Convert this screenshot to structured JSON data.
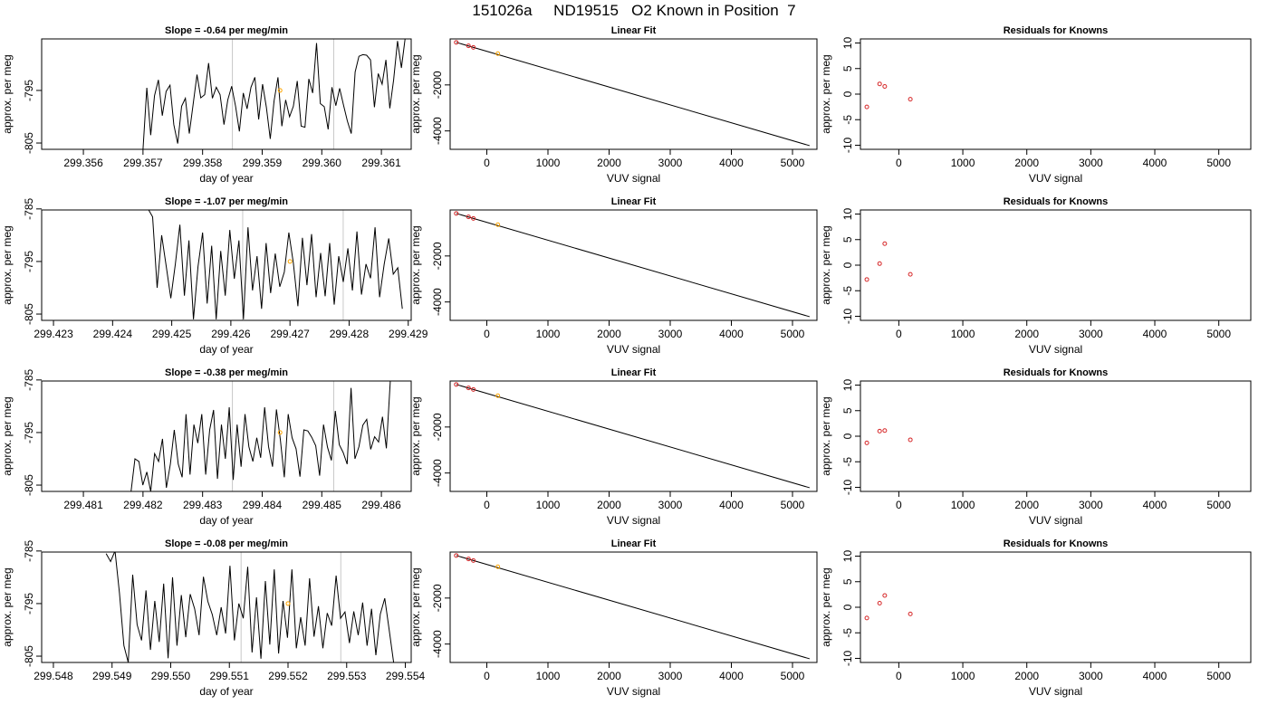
{
  "page": {
    "title": "151026a     ND19515   O2 Known in Position  7"
  },
  "colors": {
    "trace": "#000000",
    "highlight": "#ffa500",
    "points": "#d62728",
    "reference_lines": "#c8c8c8"
  },
  "chart_data": [
    {
      "type": "line",
      "title": "Slope =  -0.64  per meg/min",
      "xlabel": "day of year",
      "ylabel": "approx. per meg",
      "xlim": [
        299.3553,
        299.3615
      ],
      "ylim": [
        -806.2,
        -785.2
      ],
      "xticks": [
        299.356,
        299.357,
        299.358,
        299.359,
        299.36,
        299.361
      ],
      "xtick_labels": [
        "299.356",
        "299.357",
        "299.358",
        "299.359",
        "299.360",
        "299.361"
      ],
      "yticks": [
        -805,
        -795
      ],
      "vlines": [
        299.3585,
        299.3602
      ],
      "series": [
        {
          "x_start": 299.357,
          "x_end": 299.3614,
          "y": [
            -806.2,
            -794.5,
            -803.5,
            -796,
            -793,
            -799.8,
            -795.2,
            -794,
            -801.5,
            -805.1,
            -798,
            -796.5,
            -803.2,
            -797.7,
            -792,
            -796.4,
            -795.8,
            -789.8,
            -796.5,
            -794.4,
            -795.8,
            -801.5,
            -796.8,
            -794.2,
            -798,
            -802.8,
            -795.5,
            -798.5,
            -794.4,
            -792.5,
            -800.5,
            -793.8,
            -798.2,
            -804.2,
            -797,
            -792.5,
            -801.8,
            -796.8,
            -800,
            -798,
            -793.2,
            -801.8,
            -802,
            -792.8,
            -795.5,
            -786,
            -797.5,
            -798.1,
            -802.4,
            -794.4,
            -797.9,
            -794.6,
            -797.8,
            -800.8,
            -803.2,
            -791.5,
            -788.5,
            -788.2,
            -788.3,
            -789.2,
            -798.2,
            -791.8,
            -793.8,
            -789.2,
            -798.4,
            -793,
            -785.6,
            -790.7,
            -785
          ]
        }
      ],
      "highlight_points": [
        {
          "x": 299.3593,
          "y": -795
        }
      ]
    },
    {
      "type": "line",
      "title": "Linear Fit",
      "xlabel": "VUV signal",
      "ylabel": "approx. per meg",
      "xlim": [
        -600,
        5400
      ],
      "ylim": [
        -4800,
        0
      ],
      "xticks": [
        0,
        1000,
        2000,
        3000,
        4000,
        5000
      ],
      "xtick_labels": [
        "0",
        "1000",
        "2000",
        "3000",
        "4000",
        "5000"
      ],
      "yticks": [
        -2000,
        -4000
      ],
      "ytick_labels": [
        "-2000",
        "-4000"
      ],
      "fit_line": {
        "x": [
          -500,
          5280
        ],
        "y": [
          -150,
          -4640
        ]
      },
      "known_points": [
        {
          "x": -500,
          "y": -150
        },
        {
          "x": -300,
          "y": -300
        },
        {
          "x": -220,
          "y": -370
        }
      ],
      "highlight_points": [
        {
          "x": 180,
          "y": -640
        }
      ]
    },
    {
      "type": "scatter",
      "title": "Residuals for Knowns",
      "xlabel": "VUV signal",
      "ylabel": "approx. per meg",
      "xlim": [
        -600,
        5500
      ],
      "ylim": [
        -10.8,
        10.8
      ],
      "xticks": [
        0,
        1000,
        2000,
        3000,
        4000,
        5000
      ],
      "xtick_labels": [
        "0",
        "1000",
        "2000",
        "3000",
        "4000",
        "5000"
      ],
      "yticks": [
        10,
        5,
        0,
        -5,
        -10
      ],
      "points": [
        {
          "x": -500,
          "y": -2.5
        },
        {
          "x": -300,
          "y": 2
        },
        {
          "x": -220,
          "y": 1.5
        },
        {
          "x": 180,
          "y": -1
        }
      ]
    },
    {
      "type": "line",
      "title": "Slope =  -1.07  per meg/min",
      "xlabel": "day of year",
      "ylabel": "approx. per meg",
      "xlim": [
        299.4228,
        299.42905
      ],
      "ylim": [
        -806.2,
        -785.2
      ],
      "xticks": [
        299.423,
        299.424,
        299.425,
        299.426,
        299.427,
        299.428,
        299.429
      ],
      "xtick_labels": [
        "299.423",
        "299.424",
        "299.425",
        "299.426",
        "299.427",
        "299.428",
        "299.429"
      ],
      "yticks": [
        -785,
        -795,
        -805
      ],
      "vlines": [
        299.4262,
        299.4279
      ],
      "series": [
        {
          "x_start": 299.4246,
          "x_end": 299.4289,
          "y": [
            -785,
            -786.5,
            -800,
            -790,
            -796,
            -802,
            -795.5,
            -788,
            -801.5,
            -791,
            -806,
            -796,
            -789.5,
            -803,
            -792,
            -806,
            -793,
            -801.5,
            -789,
            -798.3,
            -791,
            -806,
            -788.5,
            -800.5,
            -794,
            -804,
            -791.5,
            -801,
            -793.5,
            -799.8,
            -797,
            -789.5,
            -795.3,
            -803.5,
            -790.5,
            -799.5,
            -789.8,
            -801.8,
            -793.4,
            -801.6,
            -791.5,
            -803.2,
            -794,
            -798.9,
            -792.5,
            -800.5,
            -789.3,
            -801.3,
            -795.5,
            -798.2,
            -788.5,
            -801.8,
            -795.5,
            -790.6,
            -797.4,
            -796.2,
            -804
          ]
        }
      ],
      "highlight_points": [
        {
          "x": 299.427,
          "y": -795
        }
      ]
    },
    {
      "type": "line",
      "title": "Linear Fit",
      "xlabel": "VUV signal",
      "ylabel": "approx. per meg",
      "xlim": [
        -600,
        5400
      ],
      "ylim": [
        -4800,
        0
      ],
      "xticks": [
        0,
        1000,
        2000,
        3000,
        4000,
        5000
      ],
      "xtick_labels": [
        "0",
        "1000",
        "2000",
        "3000",
        "4000",
        "5000"
      ],
      "yticks": [
        -2000,
        -4000
      ],
      "ytick_labels": [
        "-2000",
        "-4000"
      ],
      "fit_line": {
        "x": [
          -500,
          5280
        ],
        "y": [
          -150,
          -4640
        ]
      },
      "known_points": [
        {
          "x": -500,
          "y": -150
        },
        {
          "x": -300,
          "y": -300
        },
        {
          "x": -220,
          "y": -370
        }
      ],
      "highlight_points": [
        {
          "x": 180,
          "y": -640
        }
      ]
    },
    {
      "type": "scatter",
      "title": "Residuals for Knowns",
      "xlabel": "VUV signal",
      "ylabel": "approx. per meg",
      "xlim": [
        -600,
        5500
      ],
      "ylim": [
        -10.8,
        10.8
      ],
      "xticks": [
        0,
        1000,
        2000,
        3000,
        4000,
        5000
      ],
      "xtick_labels": [
        "0",
        "1000",
        "2000",
        "3000",
        "4000",
        "5000"
      ],
      "yticks": [
        10,
        5,
        0,
        -5,
        -10
      ],
      "points": [
        {
          "x": -500,
          "y": -2.8
        },
        {
          "x": -300,
          "y": 0.3
        },
        {
          "x": -220,
          "y": 4.2
        },
        {
          "x": 180,
          "y": -1.8
        }
      ]
    },
    {
      "type": "line",
      "title": "Slope =  -0.38  per meg/min",
      "xlabel": "day of year",
      "ylabel": "approx. per meg",
      "xlim": [
        299.4803,
        299.4865
      ],
      "ylim": [
        -806.2,
        -785.2
      ],
      "xticks": [
        299.481,
        299.482,
        299.483,
        299.484,
        299.485,
        299.486
      ],
      "xtick_labels": [
        "299.481",
        "299.482",
        "299.483",
        "299.484",
        "299.485",
        "299.486"
      ],
      "yticks": [
        -785,
        -795,
        -805
      ],
      "vlines": [
        299.4835,
        299.4852
      ],
      "series": [
        {
          "x_start": 299.4818,
          "x_end": 299.48615,
          "y": [
            -806.2,
            -800,
            -800.5,
            -805,
            -802.5,
            -806.2,
            -799,
            -800.5,
            -796.2,
            -805.5,
            -801,
            -794.5,
            -801,
            -803.5,
            -791.5,
            -803,
            -793.5,
            -797,
            -791.5,
            -803,
            -794.5,
            -790.7,
            -803.8,
            -793.5,
            -800,
            -790.2,
            -804,
            -793.5,
            -801.5,
            -791.5,
            -797.7,
            -800.5,
            -796,
            -799.8,
            -790.2,
            -797.7,
            -801.5,
            -790.6,
            -796.3,
            -803.5,
            -791.5,
            -796,
            -798.1,
            -803.4,
            -794.5,
            -794.7,
            -795.9,
            -797.5,
            -803.2,
            -793.5,
            -797.8,
            -800.3,
            -790.9,
            -797.3,
            -798.8,
            -801,
            -786.5,
            -800,
            -797.7,
            -793.6,
            -792.5,
            -798.2,
            -795.8,
            -796.8,
            -792,
            -798,
            -785
          ]
        }
      ],
      "highlight_points": [
        {
          "x": 299.4843,
          "y": -795
        }
      ]
    },
    {
      "type": "line",
      "title": "Linear Fit",
      "xlabel": "VUV signal",
      "ylabel": "approx. per meg",
      "xlim": [
        -600,
        5400
      ],
      "ylim": [
        -4800,
        0
      ],
      "xticks": [
        0,
        1000,
        2000,
        3000,
        4000,
        5000
      ],
      "xtick_labels": [
        "0",
        "1000",
        "2000",
        "3000",
        "4000",
        "5000"
      ],
      "yticks": [
        -2000,
        -4000
      ],
      "ytick_labels": [
        "-2000",
        "-4000"
      ],
      "fit_line": {
        "x": [
          -500,
          5280
        ],
        "y": [
          -150,
          -4640
        ]
      },
      "known_points": [
        {
          "x": -500,
          "y": -150
        },
        {
          "x": -300,
          "y": -300
        },
        {
          "x": -220,
          "y": -370
        }
      ],
      "highlight_points": [
        {
          "x": 180,
          "y": -640
        }
      ]
    },
    {
      "type": "scatter",
      "title": "Residuals for Knowns",
      "xlabel": "VUV signal",
      "ylabel": "approx. per meg",
      "xlim": [
        -600,
        5500
      ],
      "ylim": [
        -10.8,
        10.8
      ],
      "xticks": [
        0,
        1000,
        2000,
        3000,
        4000,
        5000
      ],
      "xtick_labels": [
        "0",
        "1000",
        "2000",
        "3000",
        "4000",
        "5000"
      ],
      "yticks": [
        10,
        5,
        0,
        -5,
        -10
      ],
      "points": [
        {
          "x": -500,
          "y": -1.3
        },
        {
          "x": -300,
          "y": 1
        },
        {
          "x": -220,
          "y": 1.1
        },
        {
          "x": 180,
          "y": -0.7
        }
      ]
    },
    {
      "type": "line",
      "title": "Slope =  -0.08  per meg/min",
      "xlabel": "day of year",
      "ylabel": "approx. per meg",
      "xlim": [
        299.5478,
        299.5541
      ],
      "ylim": [
        -806.2,
        -785.2
      ],
      "xticks": [
        299.548,
        299.549,
        299.55,
        299.551,
        299.552,
        299.553,
        299.554
      ],
      "xtick_labels": [
        "299.548",
        "299.549",
        "299.550",
        "299.551",
        "299.552",
        "299.553",
        "299.554"
      ],
      "yticks": [
        -785,
        -795,
        -805
      ],
      "vlines": [
        299.5512,
        299.5529
      ],
      "series": [
        {
          "x_start": 299.5489,
          "x_end": 299.5538,
          "y": [
            -785.5,
            -787,
            -785,
            -793,
            -803,
            -806.2,
            -789.5,
            -799,
            -802,
            -792.5,
            -803.8,
            -794.5,
            -802.3,
            -791.2,
            -805.4,
            -790,
            -803,
            -793.4,
            -801.4,
            -793.2,
            -796,
            -801,
            -789.9,
            -794.6,
            -797.1,
            -801,
            -795.7,
            -800.7,
            -787.8,
            -802,
            -795,
            -797.8,
            -788,
            -804.3,
            -793.8,
            -805.5,
            -790.7,
            -802.8,
            -788.5,
            -804.5,
            -794.5,
            -801.5,
            -788.5,
            -803.5,
            -797.6,
            -803,
            -790.2,
            -801.3,
            -795.5,
            -803.5,
            -796.8,
            -799.2,
            -789.7,
            -797.8,
            -796.6,
            -802.5,
            -796.5,
            -801,
            -794.8,
            -803,
            -796,
            -804.8,
            -797,
            -794,
            -800,
            -806.2
          ]
        }
      ],
      "highlight_points": [
        {
          "x": 299.552,
          "y": -795
        }
      ]
    },
    {
      "type": "line",
      "title": "Linear Fit",
      "xlabel": "VUV signal",
      "ylabel": "approx. per meg",
      "xlim": [
        -600,
        5400
      ],
      "ylim": [
        -4800,
        0
      ],
      "xticks": [
        0,
        1000,
        2000,
        3000,
        4000,
        5000
      ],
      "xtick_labels": [
        "0",
        "1000",
        "2000",
        "3000",
        "4000",
        "5000"
      ],
      "yticks": [
        -2000,
        -4000
      ],
      "ytick_labels": [
        "-2000",
        "-4000"
      ],
      "fit_line": {
        "x": [
          -500,
          5280
        ],
        "y": [
          -150,
          -4640
        ]
      },
      "known_points": [
        {
          "x": -500,
          "y": -150
        },
        {
          "x": -300,
          "y": -300
        },
        {
          "x": -220,
          "y": -370
        }
      ],
      "highlight_points": [
        {
          "x": 180,
          "y": -640
        }
      ]
    },
    {
      "type": "scatter",
      "title": "Residuals for Knowns",
      "xlabel": "VUV signal",
      "ylabel": "approx. per meg",
      "xlim": [
        -600,
        5500
      ],
      "ylim": [
        -10.8,
        10.8
      ],
      "xticks": [
        0,
        1000,
        2000,
        3000,
        4000,
        5000
      ],
      "xtick_labels": [
        "0",
        "1000",
        "2000",
        "3000",
        "4000",
        "5000"
      ],
      "yticks": [
        10,
        5,
        0,
        -5,
        -10
      ],
      "points": [
        {
          "x": -500,
          "y": -2.1
        },
        {
          "x": -300,
          "y": 0.8
        },
        {
          "x": -220,
          "y": 2.3
        },
        {
          "x": 180,
          "y": -1.3
        }
      ]
    }
  ]
}
